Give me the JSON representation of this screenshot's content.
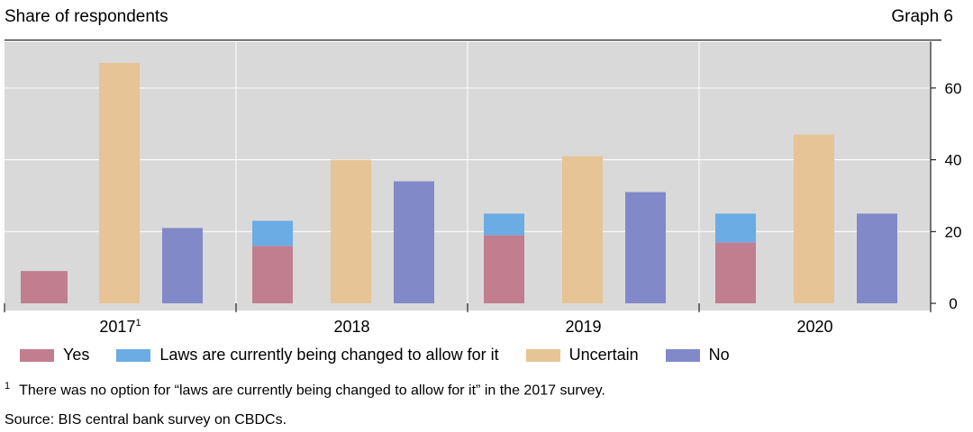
{
  "header": {
    "title": "Share of respondents",
    "graph_label": "Graph 6"
  },
  "colors": {
    "yes": "#c17e8f",
    "laws": "#6aace3",
    "uncertain": "#e6c495",
    "no": "#8189c9",
    "plot_bg": "#d9d9d9",
    "grid": "#ffffff"
  },
  "chart_data": {
    "type": "bar",
    "stacked_series": [
      "Yes",
      "Laws are currently being changed to allow for it"
    ],
    "categories": [
      "2017",
      "2018",
      "2019",
      "2020"
    ],
    "category_superscripts": [
      "1",
      "",
      "",
      ""
    ],
    "series": [
      {
        "name": "Yes",
        "values": [
          9,
          16,
          19,
          17
        ]
      },
      {
        "name": "Laws are currently being changed to allow for it",
        "values": [
          0,
          7,
          6,
          8
        ]
      },
      {
        "name": "Uncertain",
        "values": [
          67,
          40,
          41,
          47
        ]
      },
      {
        "name": "No",
        "values": [
          21,
          34,
          31,
          25
        ]
      }
    ],
    "yticks": [
      0,
      20,
      40,
      60
    ],
    "ylim": [
      -2,
      73
    ],
    "y_axis_side": "right",
    "grid": true,
    "title": "Share of respondents",
    "xlabel": "",
    "ylabel": ""
  },
  "legend": [
    "Yes",
    "Laws are currently being changed to allow for it",
    "Uncertain",
    "No"
  ],
  "footnote": {
    "marker": "1",
    "text": "There was no option for “laws are currently being changed to allow for it” in the 2017 survey."
  },
  "source": "Source: BIS central bank survey on CBDCs."
}
